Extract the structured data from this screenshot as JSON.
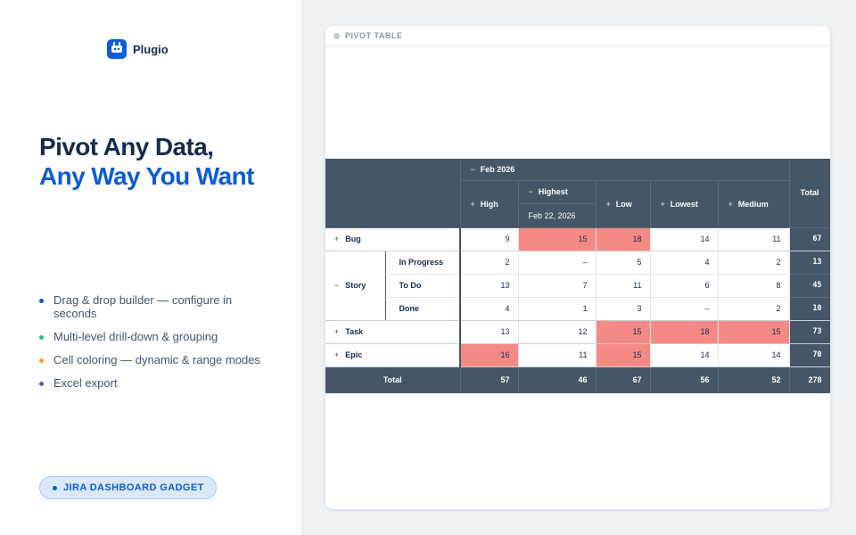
{
  "brand": {
    "name": "Plugio",
    "logo_icon": "robot-icon"
  },
  "headline": {
    "line1": "Pivot Any Data,",
    "line2": "Any Way You Want"
  },
  "features": [
    {
      "text": "Drag & drop builder — configure in seconds",
      "color": "#0b5cd6"
    },
    {
      "text": "Multi-level drill-down & grouping",
      "color": "#2fb679"
    },
    {
      "text": "Cell coloring — dynamic & range modes",
      "color": "#f5a623"
    },
    {
      "text": "Excel export",
      "color": "#6e4fc4"
    }
  ],
  "badge": {
    "label": "JIRA DASHBOARD GADGET",
    "color": "#0b5cd6"
  },
  "gadget": {
    "title": "PIVOT TABLE"
  },
  "pivot": {
    "month": "Feb 2026",
    "columns": {
      "high": "High",
      "highest": "Highest",
      "highest_date": "Feb 22, 2026",
      "low": "Low",
      "lowest": "Lowest",
      "medium": "Medium",
      "total": "Total"
    },
    "rows": {
      "bug": {
        "label": "Bug",
        "values": [
          "9",
          "15",
          "18",
          "14",
          "11"
        ],
        "total": "67"
      },
      "story": {
        "label": "Story",
        "in_progress": {
          "label": "In Progress",
          "values": [
            "2",
            "–",
            "5",
            "4",
            "2"
          ],
          "total": "13"
        },
        "to_do": {
          "label": "To Do",
          "values": [
            "13",
            "7",
            "11",
            "6",
            "8"
          ],
          "total": "45"
        },
        "done": {
          "label": "Done",
          "values": [
            "4",
            "1",
            "3",
            "–",
            "2"
          ],
          "total": "10"
        }
      },
      "task": {
        "label": "Task",
        "values": [
          "13",
          "12",
          "15",
          "18",
          "15"
        ],
        "total": "73"
      },
      "epic": {
        "label": "Epic",
        "values": [
          "16",
          "11",
          "15",
          "14",
          "14"
        ],
        "total": "70"
      }
    },
    "totals": {
      "label": "Total",
      "values": [
        "57",
        "46",
        "67",
        "56",
        "52"
      ],
      "grand": "278"
    },
    "highlight_color": "#f58a84",
    "header_color": "#465568"
  }
}
